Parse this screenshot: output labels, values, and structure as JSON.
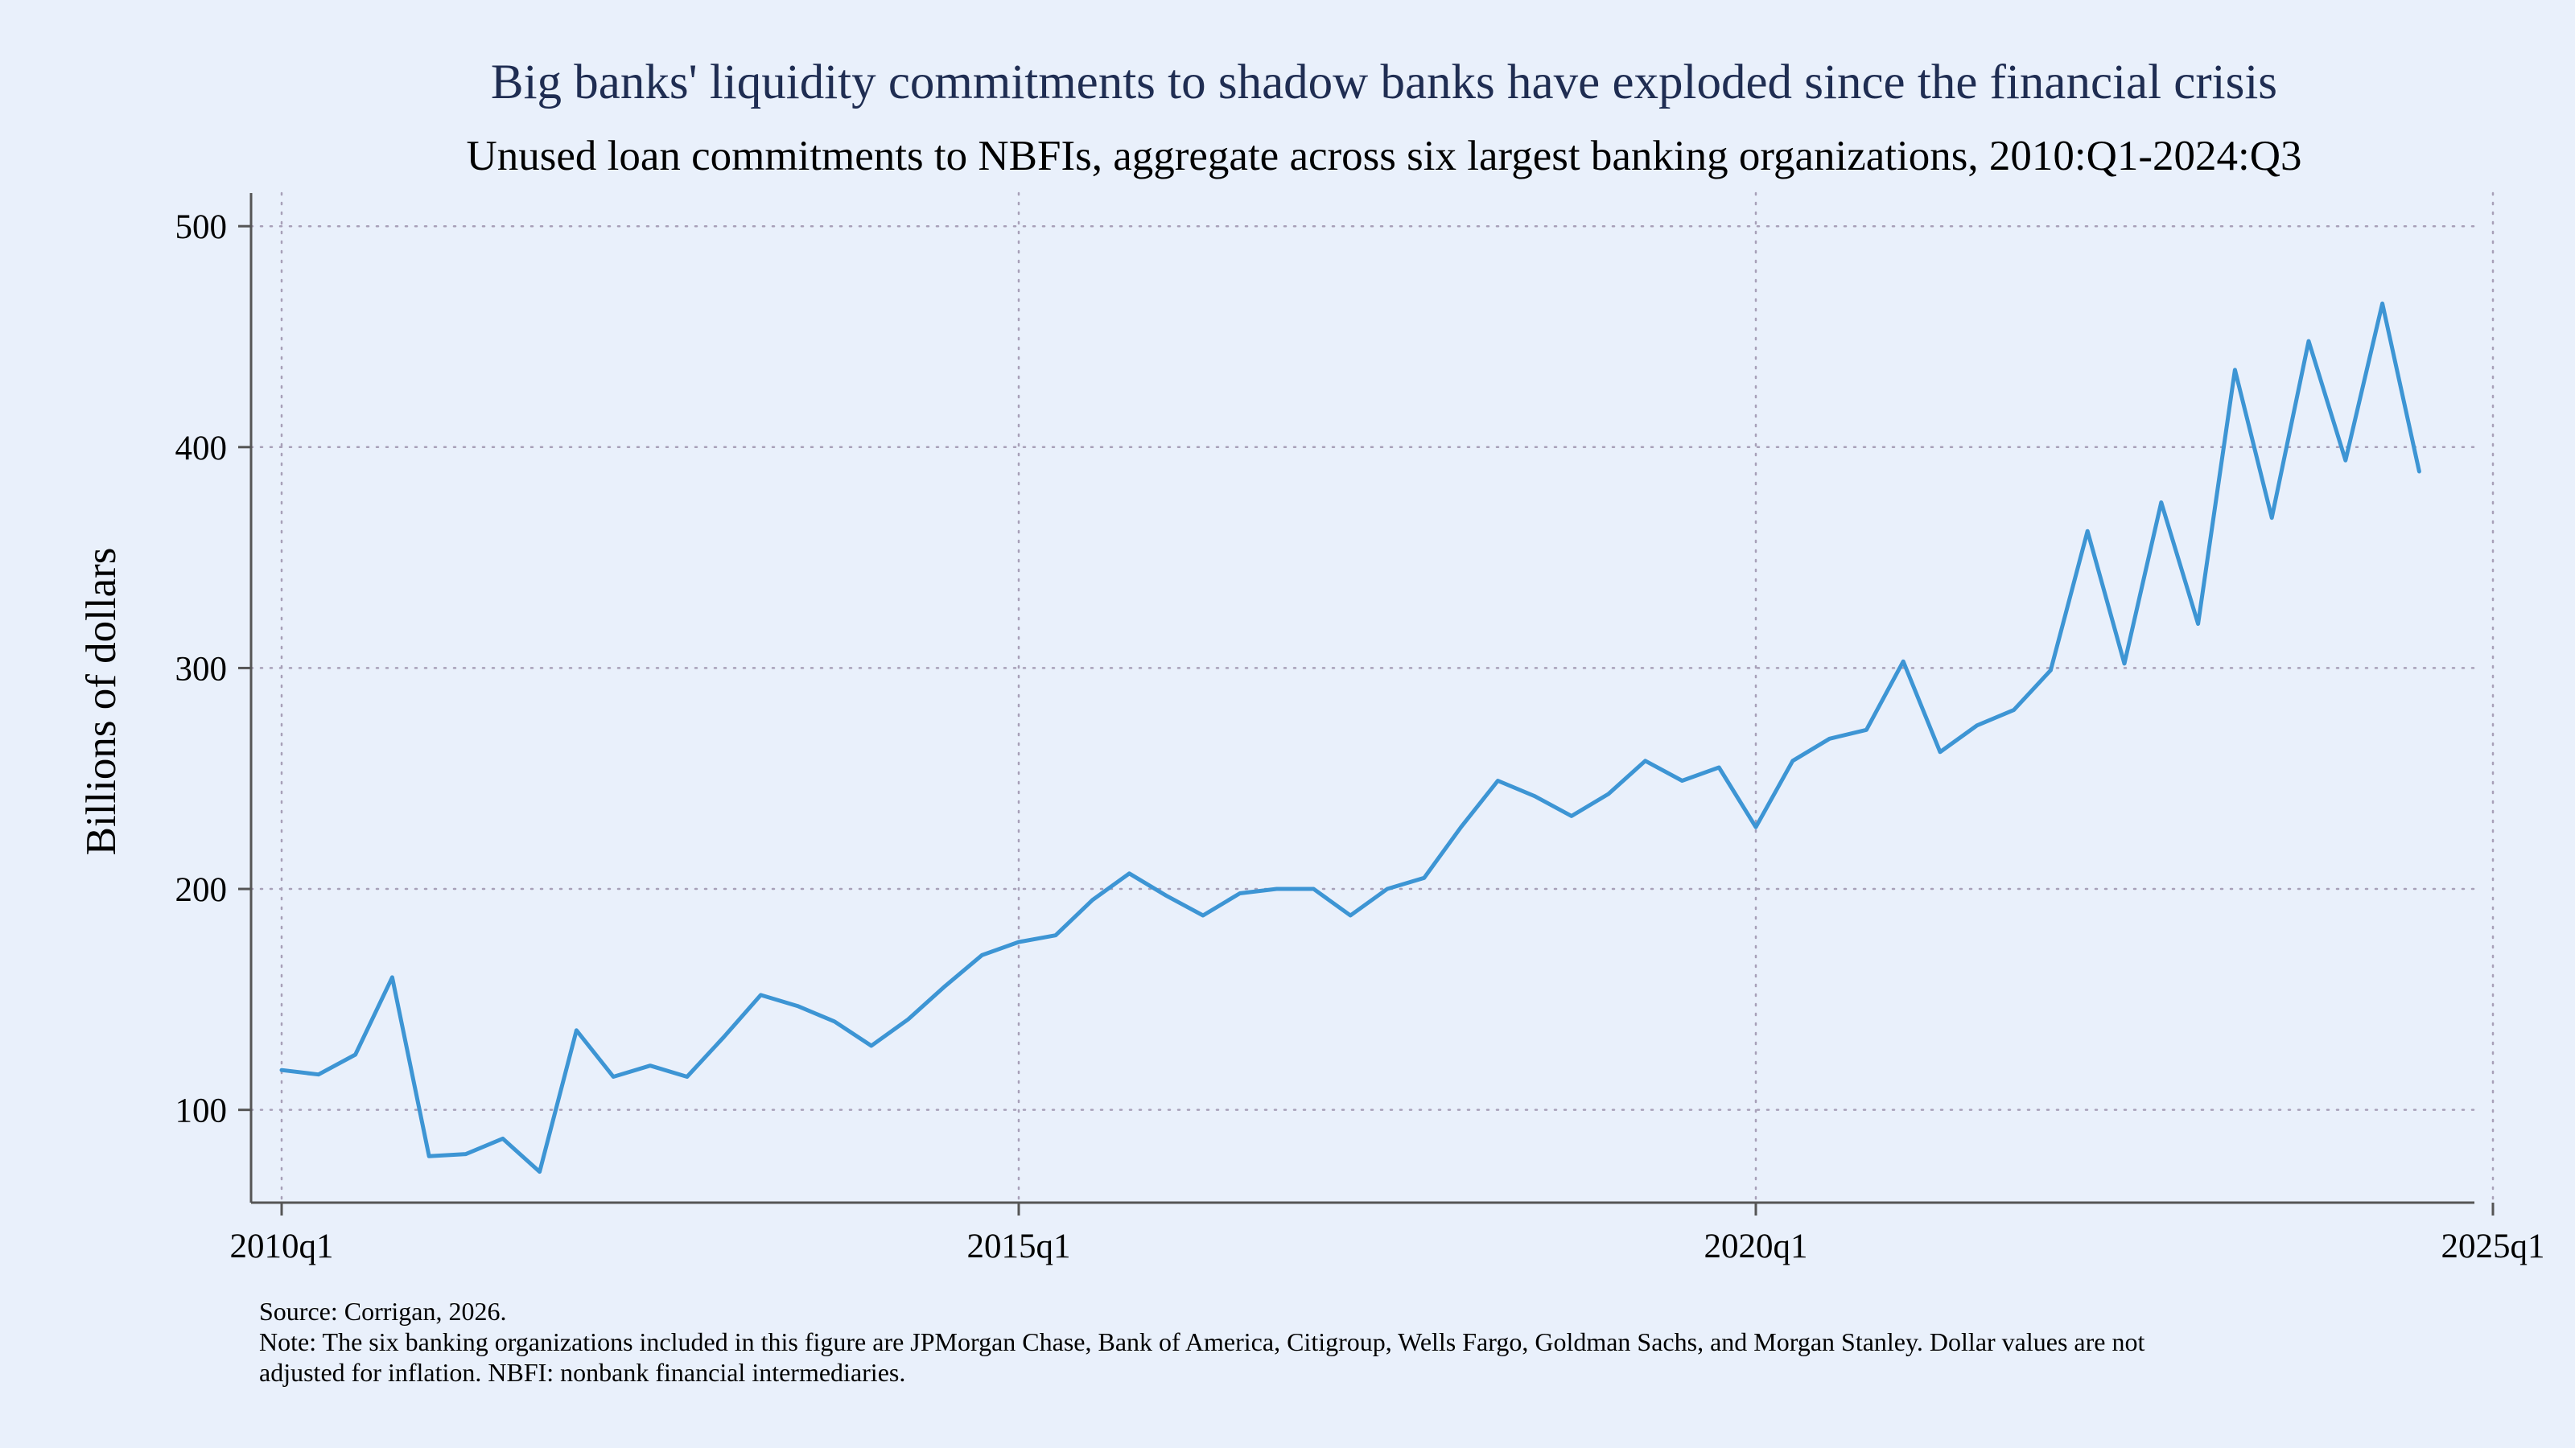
{
  "chart_data": {
    "type": "line",
    "title": "Big banks' liquidity commitments to shadow banks have exploded since the financial crisis",
    "subtitle": "Unused loan commitments to NBFIs, aggregate across six largest banking organizations, 2010:Q1-2024:Q3",
    "xlabel": "",
    "ylabel": "Billions of dollars",
    "x_ticks": [
      "2010q1",
      "2015q1",
      "2020q1",
      "2025q1"
    ],
    "y_ticks": [
      100,
      200,
      300,
      400,
      500
    ],
    "ylim": [
      58,
      515
    ],
    "xlim_quarters": [
      0,
      60
    ],
    "grid": true,
    "series": [
      {
        "name": "Unused loan commitments to NBFIs",
        "color": "#3d95d4",
        "values": [
          118,
          116,
          125,
          160,
          79,
          80,
          87,
          72,
          136,
          115,
          120,
          115,
          133,
          152,
          147,
          140,
          129,
          141,
          156,
          170,
          176,
          179,
          195,
          207,
          197,
          188,
          198,
          200,
          200,
          188,
          200,
          205,
          228,
          249,
          242,
          233,
          243,
          258,
          249,
          255,
          228,
          258,
          268,
          272,
          303,
          262,
          274,
          281,
          299,
          362,
          302,
          375,
          320,
          435,
          368,
          448,
          394,
          465,
          389
        ]
      }
    ]
  },
  "footer": {
    "source": "Source: Corrigan, 2026.",
    "note_line1": "Note: The six banking organizations included in this figure are JPMorgan Chase, Bank of America, Citigroup, Wells Fargo, Goldman Sachs, and Morgan Stanley. Dollar values are not",
    "note_line2": "adjusted for inflation. NBFI: nonbank financial intermediaries."
  },
  "colors": {
    "background": "#e9f0fb",
    "line": "#3d95d4",
    "grid": "#a8a0b8",
    "axis": "#555555",
    "title": "#1f2d52"
  }
}
